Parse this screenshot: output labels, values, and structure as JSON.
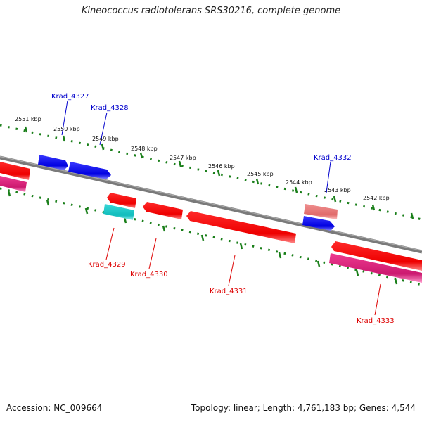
{
  "title": "Kineococcus radiotolerans SRS30216, complete genome",
  "footer": {
    "accession": "Accession: NC_009664",
    "summary": "Topology: linear; Length: 4,761,183 bp; Genes: 4,544"
  },
  "colors": {
    "backbone": "#808080",
    "tick_green": "#1a7f1a",
    "forward_gene": "#0000ee",
    "reverse_gene": "#ee0000",
    "pink_gene": "#e6338a",
    "cyan_gene": "#1ecbcb",
    "salmon_gene": "#e87878",
    "label_blue": "#0000cc",
    "label_red": "#dd0000"
  },
  "ruler": {
    "kbp_labels": [
      "2551 kbp",
      "2550 kbp",
      "2549 kbp",
      "2548 kbp",
      "2547 kbp",
      "2546 kbp",
      "2545 kbp",
      "2544 kbp",
      "2543 kbp",
      "2542 kbp"
    ]
  },
  "genes": {
    "upper_labels": [
      "Krad_4327",
      "Krad_4328",
      "Krad_4332"
    ],
    "lower_labels": [
      "Krad_4329",
      "Krad_4330",
      "Krad_4331",
      "Krad_4333"
    ]
  }
}
